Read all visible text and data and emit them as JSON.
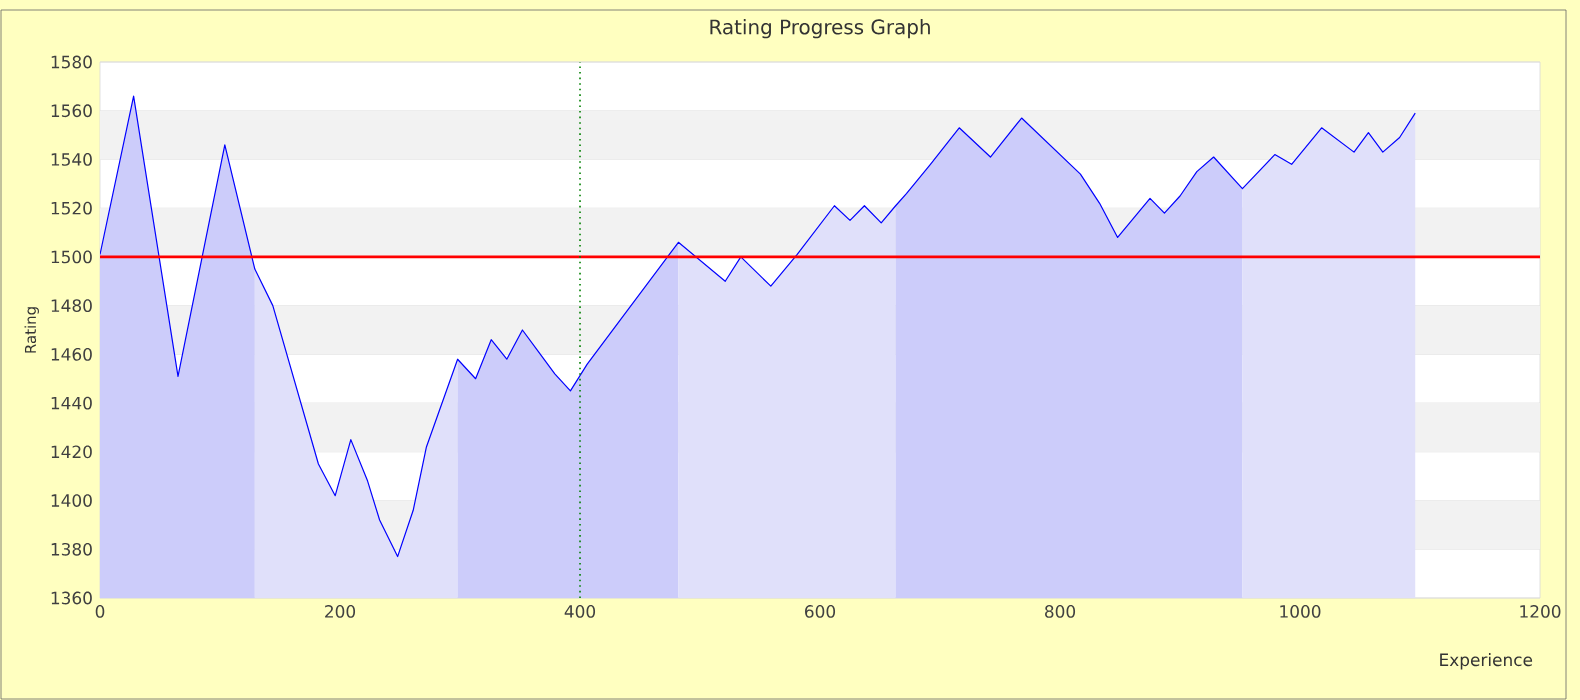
{
  "chart_data": {
    "type": "area",
    "title": "Rating Progress Graph",
    "xlabel": "Experience",
    "ylabel": "Rating",
    "xlim": [
      0,
      1200
    ],
    "xticks": [
      0,
      200,
      400,
      600,
      800,
      1000,
      1200
    ],
    "ylim": [
      1360,
      1580
    ],
    "yticks": [
      1360,
      1380,
      1400,
      1420,
      1440,
      1460,
      1480,
      1500,
      1520,
      1540,
      1560,
      1580
    ],
    "grid": "y",
    "series": [
      {
        "type": "line",
        "color": "#0000ff",
        "x": [
          0,
          28,
          65,
          104,
          129,
          144,
          182,
          196,
          209,
          223,
          233,
          248,
          261,
          272,
          298,
          313,
          326,
          339,
          352,
          367,
          379,
          392,
          406,
          482,
          521,
          534,
          559,
          581,
          612,
          625,
          637,
          651,
          663,
          672,
          692,
          716,
          742,
          768,
          817,
          833,
          848,
          875,
          887,
          900,
          914,
          928,
          952,
          979,
          993,
          1018,
          1045,
          1057,
          1069,
          1083,
          1096
        ],
        "values": [
          1501,
          1566,
          1451,
          1546,
          1495,
          1480,
          1415,
          1402,
          1425,
          1408,
          1392,
          1377,
          1396,
          1422,
          1458,
          1450,
          1466,
          1458,
          1470,
          1460,
          1452,
          1445,
          1456,
          1506,
          1490,
          1500,
          1488,
          1501,
          1521,
          1515,
          1521,
          1514,
          1521,
          1526,
          1538,
          1553,
          1541,
          1557,
          1534,
          1522,
          1508,
          1524,
          1518,
          1525,
          1535,
          1541,
          1528,
          1542,
          1538,
          1553,
          1543,
          1551,
          1543,
          1549,
          1559
        ]
      },
      {
        "color": "#ccccfa",
        "x": [
          0,
          28,
          65,
          104,
          129
        ],
        "values": [
          1501,
          1566,
          1451,
          1546,
          1495
        ]
      },
      {
        "color": "#e0e0fa",
        "x": [
          129,
          144,
          182,
          196,
          209,
          223,
          233,
          248,
          261,
          272,
          298
        ],
        "values": [
          1495,
          1480,
          1415,
          1402,
          1425,
          1408,
          1392,
          1377,
          1396,
          1422,
          1458
        ]
      },
      {
        "color": "#ccccfa",
        "x": [
          298,
          313,
          326,
          339,
          352,
          367,
          379,
          392,
          406,
          482
        ],
        "values": [
          1458,
          1450,
          1466,
          1458,
          1470,
          1460,
          1452,
          1445,
          1456,
          1506
        ]
      },
      {
        "color": "#e0e0fa",
        "x": [
          482,
          521,
          534,
          559,
          581,
          612,
          625,
          637,
          651,
          663
        ],
        "values": [
          1506,
          1490,
          1500,
          1488,
          1501,
          1521,
          1515,
          1521,
          1514,
          1521
        ]
      },
      {
        "color": "#ccccfa",
        "x": [
          663,
          672,
          692,
          716,
          742,
          768,
          817,
          833,
          848,
          875,
          887,
          900,
          914,
          928,
          952
        ],
        "values": [
          1521,
          1526,
          1538,
          1553,
          1541,
          1557,
          1534,
          1522,
          1508,
          1524,
          1518,
          1525,
          1535,
          1541,
          1528
        ]
      },
      {
        "color": "#e0e0fa",
        "x": [
          952,
          979,
          993,
          1018,
          1045,
          1057,
          1069,
          1083,
          1096
        ],
        "values": [
          1528,
          1542,
          1538,
          1553,
          1543,
          1551,
          1543,
          1549,
          1559
        ]
      }
    ],
    "ref_lines": [
      {
        "axis": "y",
        "value": 1500,
        "color": "#ff0000",
        "line_style": "solid"
      },
      {
        "axis": "x",
        "value": 400,
        "color": "#008000",
        "line_style": "dotted"
      }
    ]
  }
}
